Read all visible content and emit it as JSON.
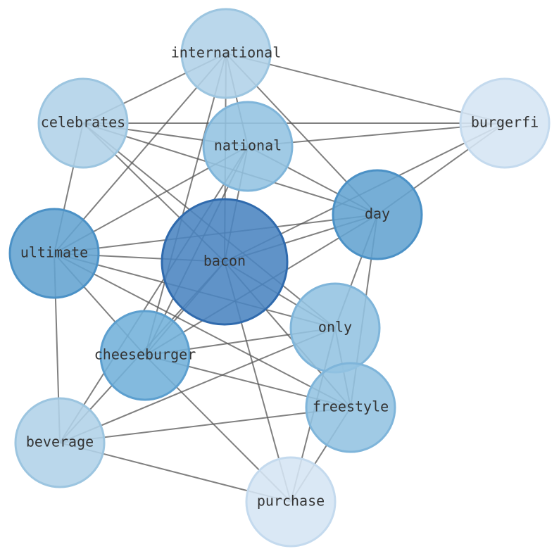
{
  "nodes": [
    {
      "label": "international"
    },
    {
      "label": "celebrates"
    },
    {
      "label": "national"
    },
    {
      "label": "burgerfi"
    },
    {
      "label": "day"
    },
    {
      "label": "ultimate"
    },
    {
      "label": "bacon"
    },
    {
      "label": "only"
    },
    {
      "label": "cheeseburger"
    },
    {
      "label": "freestyle"
    },
    {
      "label": "beverage"
    },
    {
      "label": "purchase"
    }
  ]
}
